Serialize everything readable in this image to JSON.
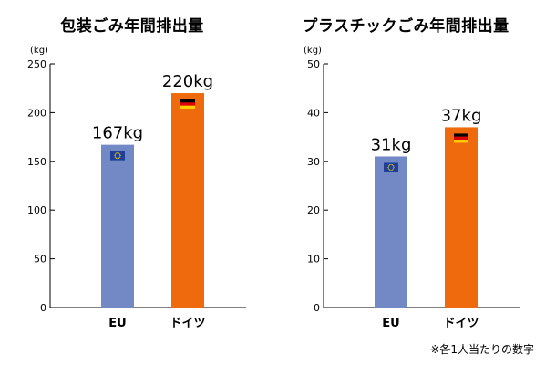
{
  "chart_data": [
    {
      "type": "bar",
      "title": "包装ごみ年間排出量",
      "ylabel": "(kg)",
      "ylim": [
        0,
        250
      ],
      "yticks": [
        0,
        50,
        100,
        150,
        200,
        250
      ],
      "categories": [
        "EU",
        "ドイツ"
      ],
      "values": [
        167,
        220
      ],
      "value_labels": [
        "167kg",
        "220kg"
      ],
      "colors": [
        "#7289c6",
        "#ee6a0c"
      ],
      "flags": [
        "eu-flag-icon",
        "germany-flag-icon"
      ],
      "grid": false
    },
    {
      "type": "bar",
      "title": "プラスチックごみ年間排出量",
      "ylabel": "(kg)",
      "ylim": [
        0,
        50
      ],
      "yticks": [
        0,
        10,
        20,
        30,
        40,
        50
      ],
      "categories": [
        "EU",
        "ドイツ"
      ],
      "values": [
        31,
        37
      ],
      "value_labels": [
        "31kg",
        "37kg"
      ],
      "colors": [
        "#7289c6",
        "#ee6a0c"
      ],
      "flags": [
        "eu-flag-icon",
        "germany-flag-icon"
      ],
      "grid": false
    }
  ],
  "footnote": "※各1人当たりの数字"
}
